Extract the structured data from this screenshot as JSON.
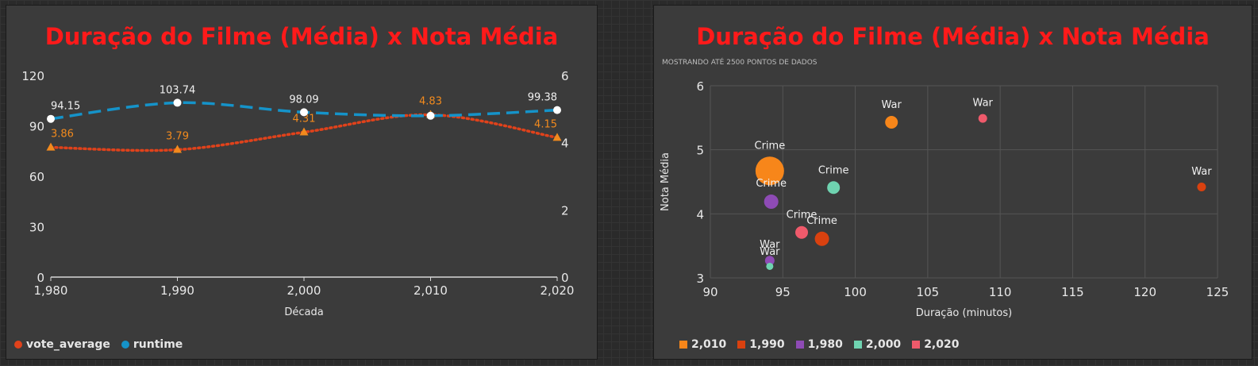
{
  "charts": {
    "left": {
      "title": "Duração do Filme (Média) x Nota Média",
      "xlabel": "Década",
      "legend": [
        {
          "name": "vote_average",
          "color": "#e0421b"
        },
        {
          "name": "runtime",
          "color": "#1593c9"
        }
      ]
    },
    "right": {
      "title": "Duração do Filme (Média) x Nota Média",
      "subtitle": "MOSTRANDO ATÉ 2500 PONTOS DE DADOS",
      "xlabel": "Duração (minutos)",
      "ylabel": "Nota Média",
      "legend": [
        {
          "name": "2,010",
          "color": "#f7861a"
        },
        {
          "name": "1,990",
          "color": "#d9410f"
        },
        {
          "name": "1,980",
          "color": "#8e4bb5"
        },
        {
          "name": "2,000",
          "color": "#6fd3b0"
        },
        {
          "name": "2,020",
          "color": "#ef5a6b"
        }
      ]
    }
  },
  "chart_data": [
    {
      "type": "line",
      "title": "Duração do Filme (Média) x Nota Média",
      "xlabel": "Década",
      "x": [
        1980,
        1990,
        2000,
        2010,
        2020
      ],
      "x_tick_labels": [
        "1,980",
        "1,990",
        "2,000",
        "2,010",
        "2,020"
      ],
      "left_axis": {
        "ticks": [
          0,
          30,
          60,
          90,
          120
        ],
        "ylim": [
          0,
          120
        ]
      },
      "right_axis": {
        "ticks": [
          0,
          2,
          4,
          6
        ],
        "ylim": [
          0,
          6
        ]
      },
      "series": [
        {
          "name": "runtime",
          "axis": "left",
          "style": "dashed",
          "color": "#1593c9",
          "values": [
            94.15,
            103.74,
            98.09,
            96.0,
            99.38
          ],
          "labels": [
            "94.15",
            "103.74",
            "98.09",
            "",
            "99.38"
          ]
        },
        {
          "name": "vote_average",
          "axis": "right",
          "style": "dotted",
          "color": "#e0421b",
          "values": [
            3.86,
            3.79,
            4.31,
            4.83,
            4.15
          ],
          "labels": [
            "3.86",
            "3.79",
            "4.31",
            "4.83",
            "4.15"
          ]
        }
      ],
      "grid": false,
      "legend_position": "bottom-left"
    },
    {
      "type": "scatter",
      "title": "Duração do Filme (Média) x Nota Média",
      "subtitle": "MOSTRANDO ATÉ 2500 PONTOS DE DADOS",
      "xlabel": "Duração (minutos)",
      "ylabel": "Nota Média",
      "xlim": [
        90,
        125
      ],
      "ylim": [
        3,
        6
      ],
      "x_ticks": [
        90,
        95,
        100,
        105,
        110,
        115,
        120,
        125
      ],
      "y_ticks": [
        3,
        4,
        5,
        6
      ],
      "grid": true,
      "legend_position": "bottom-left",
      "points": [
        {
          "x": 94.1,
          "y": 4.67,
          "size": 18,
          "group": "2,010",
          "label": "Crime"
        },
        {
          "x": 102.5,
          "y": 5.43,
          "size": 8,
          "group": "2,010",
          "label": "War"
        },
        {
          "x": 94.2,
          "y": 4.19,
          "size": 9,
          "group": "1,980",
          "label": "Crime"
        },
        {
          "x": 94.1,
          "y": 3.27,
          "size": 6,
          "group": "1,980",
          "label": "War"
        },
        {
          "x": 98.5,
          "y": 4.41,
          "size": 8,
          "group": "2,000",
          "label": "Crime"
        },
        {
          "x": 94.1,
          "y": 3.18,
          "size": 4.5,
          "group": "2,000",
          "label": "War"
        },
        {
          "x": 97.7,
          "y": 3.61,
          "size": 9,
          "group": "1,990",
          "label": "Crime"
        },
        {
          "x": 123.9,
          "y": 4.42,
          "size": 5.5,
          "group": "1,990",
          "label": "War"
        },
        {
          "x": 96.3,
          "y": 3.71,
          "size": 8,
          "group": "2,020",
          "label": "Crime"
        },
        {
          "x": 108.8,
          "y": 5.49,
          "size": 5.5,
          "group": "2,020",
          "label": "War"
        }
      ]
    }
  ]
}
